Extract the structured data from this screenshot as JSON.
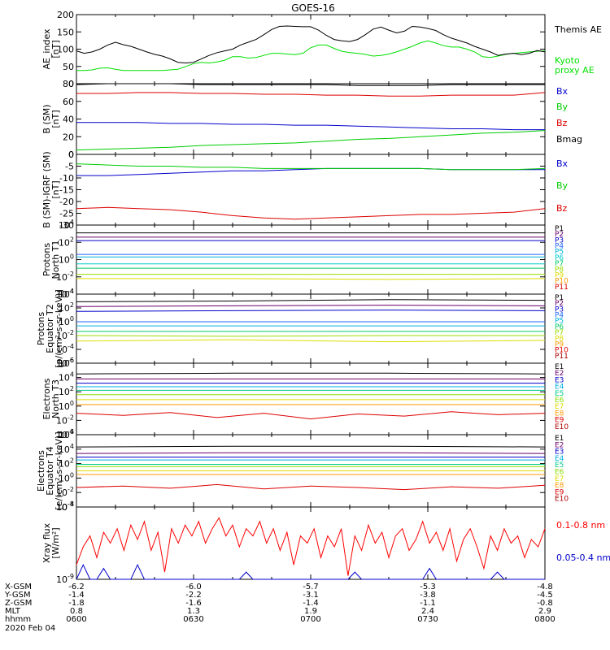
{
  "title": "GOES-16",
  "chart_data": [
    {
      "type": "line",
      "id": "ae",
      "ylabel": [
        "AE_index",
        "[nT]"
      ],
      "ylim": [
        0,
        200
      ],
      "yticks": [
        "0",
        "50",
        "100",
        "150",
        "200"
      ],
      "x_range": [
        "0600",
        "0800"
      ],
      "series": [
        {
          "name": "Kyoto proxy AE",
          "color": "#00e000",
          "values": [
            38,
            38,
            40,
            45,
            46,
            42,
            38,
            38,
            38,
            38,
            38,
            38,
            40,
            42,
            50,
            58,
            62,
            60,
            63,
            68,
            78,
            78,
            74,
            76,
            82,
            88,
            88,
            86,
            84,
            88,
            104,
            112,
            112,
            102,
            94,
            90,
            88,
            85,
            80,
            82,
            86,
            92,
            100,
            108,
            118,
            124,
            118,
            110,
            106,
            106,
            100,
            92,
            78,
            76,
            80,
            85,
            88,
            90,
            92,
            94,
            95
          ]
        },
        {
          "name": "Themis AE",
          "color": "#000000",
          "values": [
            95,
            88,
            92,
            100,
            112,
            120,
            113,
            108,
            100,
            92,
            85,
            80,
            72,
            62,
            60,
            62,
            72,
            82,
            90,
            95,
            100,
            112,
            120,
            128,
            142,
            157,
            166,
            167,
            166,
            165,
            165,
            155,
            140,
            128,
            124,
            122,
            128,
            142,
            158,
            164,
            155,
            147,
            152,
            166,
            164,
            160,
            154,
            142,
            132,
            125,
            118,
            108,
            100,
            92,
            82,
            86,
            88,
            84,
            88,
            96,
            92
          ]
        }
      ]
    },
    {
      "type": "line",
      "id": "bsm",
      "ylabel": [
        "B (SM)",
        "[nT]"
      ],
      "ylim": [
        0,
        80
      ],
      "yticks": [
        "0",
        "20",
        "40",
        "60",
        "80"
      ],
      "x_range": [
        "0600",
        "0800"
      ],
      "series": [
        {
          "name": "Bx",
          "color": "#0000cc",
          "values": [
            36,
            36,
            36,
            35,
            35,
            34,
            34,
            33,
            33,
            32,
            31,
            30,
            29,
            29,
            28,
            28
          ]
        },
        {
          "name": "By",
          "color": "#00cc00",
          "values": [
            5,
            6,
            7,
            8,
            10,
            11,
            12,
            13,
            15,
            17,
            18,
            20,
            22,
            24,
            25,
            27
          ]
        },
        {
          "name": "Bz",
          "color": "#dd0000",
          "values": [
            69,
            69,
            70,
            70,
            69,
            69,
            68,
            68,
            67,
            67,
            66,
            66,
            67,
            67,
            67,
            70
          ]
        },
        {
          "name": "Bmag",
          "color": "#000000",
          "values": [
            79,
            80,
            80,
            80,
            79,
            79,
            79,
            79,
            79,
            78,
            78,
            78,
            79,
            79,
            79,
            79
          ]
        }
      ]
    },
    {
      "type": "line",
      "id": "bigrf",
      "ylabel": [
        "B (SM)-IGRF (SM)",
        "[nT]"
      ],
      "ylim": [
        -30,
        0
      ],
      "yticks": [
        "0",
        "-5",
        "-10",
        "-15",
        "-20",
        "-25",
        "-30"
      ],
      "x_range": [
        "0600",
        "0800"
      ],
      "series": [
        {
          "name": "Bx",
          "color": "#0000cc",
          "values": [
            -9,
            -9,
            -8.5,
            -8,
            -7.5,
            -7,
            -7,
            -6.5,
            -6,
            -6,
            -6,
            -6,
            -6.5,
            -6.5,
            -6.5,
            -6.5
          ]
        },
        {
          "name": "By",
          "color": "#00cc00",
          "values": [
            -4,
            -4.5,
            -5,
            -5,
            -5.5,
            -5.5,
            -6,
            -6,
            -6,
            -6,
            -6,
            -6,
            -6.5,
            -6.5,
            -6.5,
            -6
          ]
        },
        {
          "name": "Bz",
          "color": "#dd0000",
          "values": [
            -23,
            -22.5,
            -23,
            -23.5,
            -24.5,
            -26,
            -27,
            -27.5,
            -27,
            -26.5,
            -26,
            -25.5,
            -25.5,
            -25,
            -24.5,
            -23
          ]
        }
      ]
    },
    {
      "type": "line",
      "id": "protons_t1",
      "log": true,
      "ylabel": [
        "Protons",
        "North T1"
      ],
      "ylim_exp": [
        -4,
        4
      ],
      "yticks": [
        "10-4",
        "10-2",
        "100",
        "102",
        "104"
      ],
      "x_range": [
        "0600",
        "0800"
      ],
      "channels": [
        "P1",
        "P2",
        "P3",
        "P4",
        "P5",
        "P6",
        "P7",
        "P8",
        "P9",
        "P10",
        "P11"
      ],
      "series": [
        {
          "name": "P1",
          "color": "#000000",
          "log_values": [
            3.1,
            3.1,
            3.1,
            3.1
          ]
        },
        {
          "name": "P2",
          "color": "#6a006a",
          "log_values": [
            2.6,
            2.6,
            2.6,
            2.6
          ]
        },
        {
          "name": "P3",
          "color": "#0000cc",
          "log_values": [
            2.2,
            2.2,
            2.2,
            2.2
          ]
        },
        {
          "name": "P4",
          "color": "#2266ff",
          "log_values": [
            0.6,
            0.6,
            0.6,
            0.6
          ]
        },
        {
          "name": "P5",
          "color": "#00b0e0",
          "log_values": [
            0.3,
            0.3,
            0.3,
            0.3
          ]
        },
        {
          "name": "P6",
          "color": "#00cccc",
          "log_values": [
            -0.5,
            -0.5,
            -0.5,
            -0.5
          ]
        },
        {
          "name": "P7",
          "color": "#00cc66",
          "log_values": [
            -1.0,
            -1.0,
            -1.0,
            -1.0
          ]
        },
        {
          "name": "P8",
          "color": "#99dd00",
          "log_values": [
            -1.7,
            -1.7,
            -1.7,
            -1.7
          ]
        },
        {
          "name": "P9",
          "color": "#dddd00",
          "log_values": [
            -2.2,
            -2.2,
            -2.3,
            -2.2
          ]
        },
        {
          "name": "P10",
          "color": "#ff9900",
          "log_values": []
        },
        {
          "name": "P11",
          "color": "#dd0000",
          "log_values": []
        }
      ]
    },
    {
      "type": "line",
      "id": "protons_t2",
      "log": true,
      "ylabel": [
        "Protons",
        "Equator T2",
        "[p/(cm²-s-sr-keV)]"
      ],
      "ylim_exp": [
        -6,
        4
      ],
      "yticks": [
        "10-6",
        "10-4",
        "10-2",
        "100",
        "102",
        "104"
      ],
      "x_range": [
        "0600",
        "0800"
      ],
      "channels": [
        "P1",
        "P2",
        "P3",
        "P4",
        "P5",
        "P6",
        "P7",
        "P8",
        "P9",
        "P10",
        "P11"
      ],
      "series": [
        {
          "name": "P1",
          "color": "#000000",
          "log_values": [
            2.9,
            3.0,
            3.2,
            3.1
          ]
        },
        {
          "name": "P2",
          "color": "#6a006a",
          "log_values": [
            2.2,
            2.3,
            2.4,
            2.3
          ]
        },
        {
          "name": "P3",
          "color": "#0000cc",
          "log_values": [
            1.5,
            1.6,
            1.7,
            1.6
          ]
        },
        {
          "name": "P4",
          "color": "#2266ff",
          "log_values": [
            0.0,
            0.0,
            0.0,
            0.0
          ]
        },
        {
          "name": "P5",
          "color": "#00b0e0",
          "log_values": [
            -0.6,
            -0.6,
            -0.6,
            -0.6
          ]
        },
        {
          "name": "P6",
          "color": "#00cc66",
          "log_values": [
            -1.4,
            -1.4,
            -1.4,
            -1.4
          ]
        },
        {
          "name": "P7",
          "color": "#99dd00",
          "log_values": [
            -2.0,
            -2.1,
            -2.0,
            -2.0
          ]
        },
        {
          "name": "P8",
          "color": "#dddd00",
          "log_values": [
            -2.8,
            -2.6,
            -2.9,
            -2.7
          ]
        },
        {
          "name": "P9",
          "color": "#ff9900",
          "log_values": []
        },
        {
          "name": "P10",
          "color": "#dd0000",
          "log_values": []
        },
        {
          "name": "P11",
          "color": "#aa0000",
          "log_values": []
        }
      ]
    },
    {
      "type": "line",
      "id": "electrons_t3",
      "log": true,
      "ylabel": [
        "Electrons",
        "North T3"
      ],
      "ylim_exp": [
        -4,
        6
      ],
      "yticks": [
        "10-4",
        "10-2",
        "100",
        "102",
        "104",
        "106"
      ],
      "x_range": [
        "0600",
        "0800"
      ],
      "channels": [
        "E1",
        "E2",
        "E3",
        "E4",
        "E5",
        "E6",
        "E7",
        "E8",
        "E9",
        "E10"
      ],
      "series": [
        {
          "name": "E1",
          "color": "#000000",
          "log_values": [
            4.5,
            4.6,
            4.6,
            4.5
          ]
        },
        {
          "name": "E2",
          "color": "#6a006a",
          "log_values": [
            3.8,
            3.8,
            3.8,
            3.8
          ]
        },
        {
          "name": "E3",
          "color": "#0000cc",
          "log_values": [
            3.2,
            3.2,
            3.2,
            3.2
          ]
        },
        {
          "name": "E4",
          "color": "#00b0e0",
          "log_values": [
            2.7,
            2.7,
            2.7,
            2.7
          ]
        },
        {
          "name": "E5",
          "color": "#00cc88",
          "log_values": [
            2.2,
            2.2,
            2.2,
            2.2
          ]
        },
        {
          "name": "E6",
          "color": "#88dd00",
          "log_values": [
            1.6,
            1.6,
            1.6,
            1.6
          ]
        },
        {
          "name": "E7",
          "color": "#dddd00",
          "log_values": [
            0.9,
            0.9,
            0.9,
            0.9
          ]
        },
        {
          "name": "E8",
          "color": "#ff9900",
          "log_values": [
            0.2,
            0.2,
            0.2,
            0.2
          ]
        },
        {
          "name": "E9",
          "color": "#dd0000",
          "log_values": [
            -1.0,
            -1.3,
            -0.9,
            -1.6,
            -1.0,
            -1.8,
            -1.1,
            -1.4,
            -0.8,
            -1.2,
            -1.0
          ]
        },
        {
          "name": "E10",
          "color": "#aa0000",
          "log_values": []
        }
      ]
    },
    {
      "type": "line",
      "id": "electrons_t4",
      "log": true,
      "ylabel": [
        "Electrons",
        "Equator T4",
        "[e/(cm²-s-sr-keV)]"
      ],
      "ylim_exp": [
        -4,
        6
      ],
      "yticks": [
        "10-4",
        "10-2",
        "100",
        "102",
        "104",
        "106"
      ],
      "x_range": [
        "0600",
        "0800"
      ],
      "channels": [
        "E1",
        "E2",
        "E3",
        "E4",
        "E5",
        "E6",
        "E7",
        "E8",
        "E9",
        "E10"
      ],
      "series": [
        {
          "name": "E1",
          "color": "#000000",
          "log_values": [
            4.3,
            4.4,
            4.4,
            4.3
          ]
        },
        {
          "name": "E2",
          "color": "#6a006a",
          "log_values": [
            3.4,
            3.5,
            3.5,
            3.4
          ]
        },
        {
          "name": "E3",
          "color": "#0000cc",
          "log_values": [
            2.9,
            2.9,
            2.9,
            2.9
          ]
        },
        {
          "name": "E4",
          "color": "#00b0e0",
          "log_values": [
            2.5,
            2.5,
            2.5,
            2.5
          ]
        },
        {
          "name": "E5",
          "color": "#00cc88",
          "log_values": [
            1.9,
            1.9,
            1.9,
            1.9
          ]
        },
        {
          "name": "E6",
          "color": "#88dd00",
          "log_values": [
            1.6,
            1.6,
            1.6,
            1.6
          ]
        },
        {
          "name": "E7",
          "color": "#dddd00",
          "log_values": [
            1.0,
            1.0,
            1.0,
            1.0
          ]
        },
        {
          "name": "E8",
          "color": "#ff9900",
          "log_values": [
            0.5,
            0.5,
            0.5,
            0.5
          ]
        },
        {
          "name": "E9",
          "color": "#dd0000",
          "log_values": [
            -1.3,
            -1.1,
            -1.4,
            -0.9,
            -1.5,
            -1.1,
            -1.3,
            -1.6,
            -1.2,
            -1.4,
            -1.0
          ]
        },
        {
          "name": "E10",
          "color": "#aa0000",
          "log_values": []
        }
      ]
    },
    {
      "type": "line",
      "id": "xray",
      "log": true,
      "ylabel": [
        "Xray flux",
        "[W/m²]"
      ],
      "ylim_exp": [
        -9,
        -8
      ],
      "yticks": [
        "10-9",
        "10-8"
      ],
      "x_range": [
        "0600",
        "0800"
      ],
      "series": [
        {
          "name": "0.1-0.8 nm",
          "color": "#ff0000",
          "log_values": [
            -8.8,
            -8.55,
            -8.4,
            -8.7,
            -8.35,
            -8.5,
            -8.3,
            -8.6,
            -8.25,
            -8.45,
            -8.2,
            -8.6,
            -8.35,
            -8.9,
            -8.3,
            -8.5,
            -8.25,
            -8.4,
            -8.2,
            -8.5,
            -8.3,
            -8.15,
            -8.4,
            -8.25,
            -8.55,
            -8.3,
            -8.4,
            -8.2,
            -8.5,
            -8.3,
            -8.6,
            -8.35,
            -8.8,
            -8.4,
            -8.5,
            -8.3,
            -8.7,
            -8.4,
            -8.55,
            -8.3,
            -8.95,
            -8.4,
            -8.6,
            -8.25,
            -8.5,
            -8.35,
            -8.7,
            -8.4,
            -8.3,
            -8.6,
            -8.45,
            -8.2,
            -8.5,
            -8.35,
            -8.6,
            -8.3,
            -8.75,
            -8.45,
            -8.3,
            -8.55,
            -8.85,
            -8.4,
            -8.6,
            -8.3,
            -8.5,
            -8.4,
            -8.7,
            -8.45,
            -8.55,
            -8.3
          ]
        },
        {
          "name": "0.05-0.4 nm",
          "color": "#0000cc",
          "log_values": [
            -9.0,
            -8.8,
            -9.0,
            -9.0,
            -8.85,
            -9.0,
            -9.0,
            -9.0,
            -9.0,
            -8.8,
            -9.0,
            -9.0,
            -9.0,
            -9.0,
            -9.0,
            -9.0,
            -9.0,
            -9.0,
            -9.0,
            -9.0,
            -9.0,
            -9.0,
            -9.0,
            -9.0,
            -9.0,
            -8.9,
            -9.0,
            -9.0,
            -9.0,
            -9.0,
            -9.0,
            -9.0,
            -9.0,
            -9.0,
            -9.0,
            -9.0,
            -9.0,
            -9.0,
            -9.0,
            -9.0,
            -9.0,
            -8.9,
            -9.0,
            -9.0,
            -9.0,
            -9.0,
            -9.0,
            -9.0,
            -9.0,
            -9.0,
            -9.0,
            -9.0,
            -8.85,
            -9.0,
            -9.0,
            -9.0,
            -9.0,
            -9.0,
            -9.0,
            -9.0,
            -9.0,
            -9.0,
            -8.9,
            -9.0,
            -9.0,
            -9.0,
            -9.0,
            -9.0,
            -9.0,
            -9.0
          ]
        }
      ]
    }
  ],
  "ephemeris": {
    "labels": [
      "X-GSM",
      "Y-GSM",
      "Z-GSM",
      "MLT",
      "hhmm"
    ],
    "columns": [
      [
        "-6.2",
        "-1.4",
        "-1.8",
        "0.8",
        "0600"
      ],
      [
        "-6.0",
        "-2.2",
        "-1.6",
        "1.3",
        "0630"
      ],
      [
        "-5.7",
        "-3.1",
        "-1.4",
        "1.9",
        "0700"
      ],
      [
        "-5.3",
        "-3.8",
        "-1.1",
        "2.4",
        "0730"
      ],
      [
        "-4.8",
        "-4.5",
        "-0.8",
        "2.9",
        "0800"
      ]
    ],
    "date": "2020 Feb 04"
  }
}
